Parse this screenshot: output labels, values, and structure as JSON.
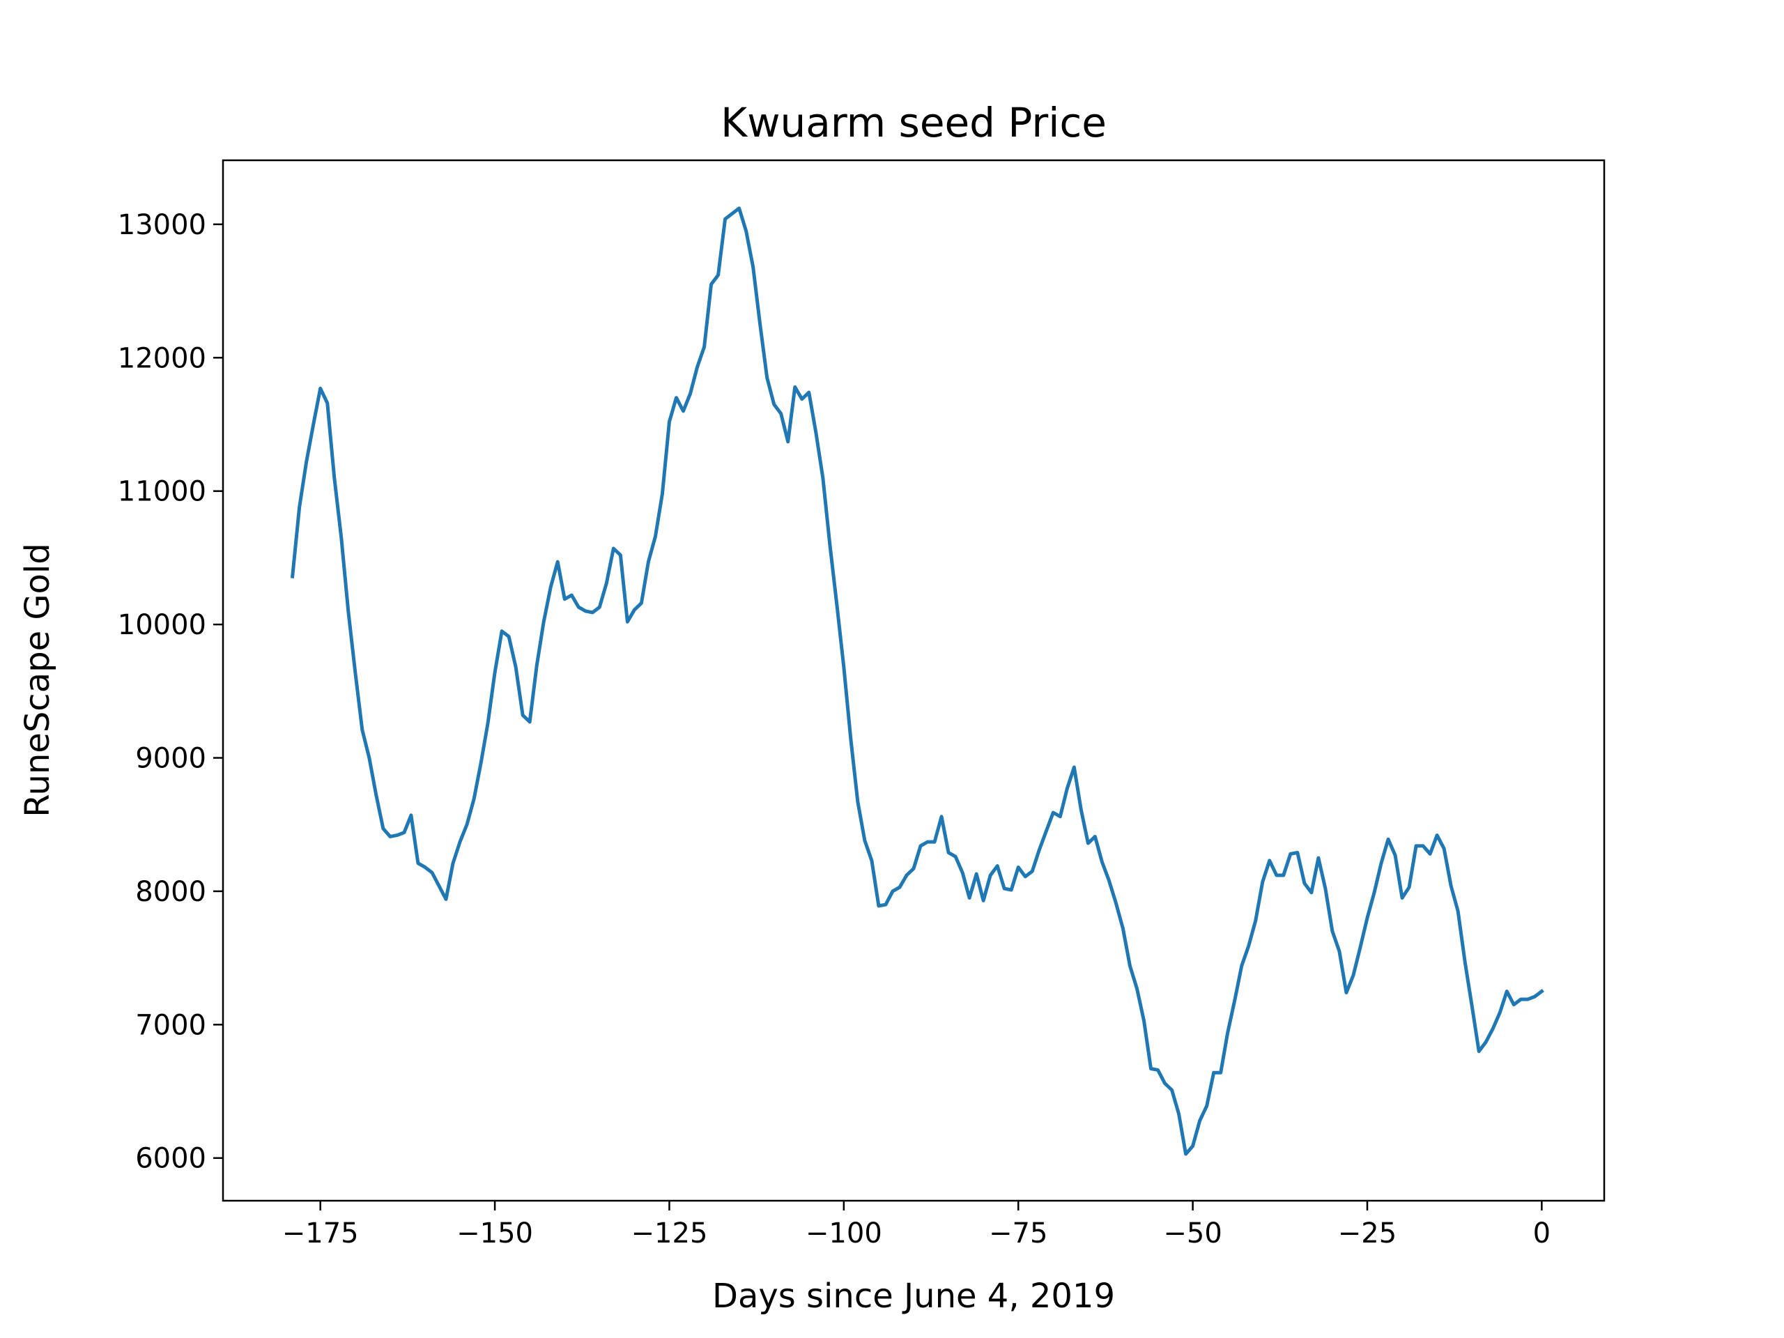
{
  "chart_data": {
    "type": "line",
    "title": "Kwuarm seed Price",
    "xlabel": "Days since June 4, 2019",
    "ylabel": "RuneScape Gold",
    "xlim": [
      -188.95,
      8.95
    ],
    "ylim": [
      5680,
      13480
    ],
    "xticks": [
      -175,
      -150,
      -125,
      -100,
      -75,
      -50,
      -25,
      0
    ],
    "xtick_labels": [
      "−175",
      "−150",
      "−125",
      "−100",
      "−75",
      "−50",
      "−25",
      "0"
    ],
    "yticks": [
      6000,
      7000,
      8000,
      9000,
      10000,
      11000,
      12000,
      13000
    ],
    "ytick_labels": [
      "6000",
      "7000",
      "8000",
      "9000",
      "10000",
      "11000",
      "12000",
      "13000"
    ],
    "grid": false,
    "legend": "none",
    "series": [
      {
        "color": "#1f77b4",
        "x": [
          -179,
          -178,
          -177,
          -176,
          -175,
          -174,
          -173,
          -172,
          -171,
          -170,
          -169,
          -168,
          -167,
          -166,
          -165,
          -164,
          -163,
          -162,
          -161,
          -160,
          -159,
          -158,
          -157,
          -156,
          -155,
          -154,
          -153,
          -152,
          -151,
          -150,
          -149,
          -148,
          -147,
          -146,
          -145,
          -144,
          -143,
          -142,
          -141,
          -140,
          -139,
          -138,
          -137,
          -136,
          -135,
          -134,
          -133,
          -132,
          -131,
          -130,
          -129,
          -128,
          -127,
          -126,
          -125,
          -124,
          -123,
          -122,
          -121,
          -120,
          -119,
          -118,
          -117,
          -116,
          -115,
          -114,
          -113,
          -112,
          -111,
          -110,
          -109,
          -108,
          -107,
          -106,
          -105,
          -104,
          -103,
          -102,
          -101,
          -100,
          -99,
          -98,
          -97,
          -96,
          -95,
          -94,
          -93,
          -92,
          -91,
          -90,
          -89,
          -88,
          -87,
          -86,
          -85,
          -84,
          -83,
          -82,
          -81,
          -80,
          -79,
          -78,
          -77,
          -76,
          -75,
          -74,
          -73,
          -72,
          -71,
          -70,
          -69,
          -68,
          -67,
          -66,
          -65,
          -64,
          -63,
          -62,
          -61,
          -60,
          -59,
          -58,
          -57,
          -56,
          -55,
          -54,
          -53,
          -52,
          -51,
          -50,
          -49,
          -48,
          -47,
          -46,
          -45,
          -44,
          -43,
          -42,
          -41,
          -40,
          -39,
          -38,
          -37,
          -36,
          -35,
          -34,
          -33,
          -32,
          -31,
          -30,
          -29,
          -28,
          -27,
          -26,
          -25,
          -24,
          -23,
          -22,
          -21,
          -20,
          -19,
          -18,
          -17,
          -16,
          -15,
          -14,
          -13,
          -12,
          -11,
          -10,
          -9,
          -8,
          -7,
          -6,
          -5,
          -4,
          -3,
          -2,
          -1,
          0
        ],
        "values": [
          10360,
          10880,
          11220,
          11500,
          11770,
          11660,
          11100,
          10650,
          10100,
          9640,
          9210,
          9000,
          8720,
          8470,
          8410,
          8420,
          8440,
          8570,
          8210,
          8180,
          8140,
          8040,
          7940,
          8210,
          8370,
          8500,
          8690,
          8960,
          9260,
          9640,
          9950,
          9910,
          9680,
          9320,
          9270,
          9690,
          10020,
          10280,
          10470,
          10190,
          10220,
          10130,
          10100,
          10090,
          10130,
          10310,
          10570,
          10520,
          10020,
          10110,
          10160,
          10470,
          10660,
          10980,
          11520,
          11700,
          11600,
          11730,
          11930,
          12080,
          12550,
          12620,
          13040,
          13080,
          13120,
          12950,
          12680,
          12250,
          11850,
          11650,
          11580,
          11370,
          11780,
          11690,
          11740,
          11440,
          11100,
          10600,
          10150,
          9680,
          9140,
          8670,
          8380,
          8230,
          7890,
          7900,
          8000,
          8030,
          8120,
          8170,
          8340,
          8370,
          8370,
          8560,
          8290,
          8260,
          8140,
          7950,
          8130,
          7930,
          8120,
          8190,
          8020,
          8010,
          8180,
          8110,
          8150,
          8310,
          8450,
          8590,
          8560,
          8770,
          8930,
          8610,
          8360,
          8410,
          8220,
          8080,
          7910,
          7720,
          7440,
          7270,
          7030,
          6670,
          6660,
          6560,
          6510,
          6330,
          6030,
          6090,
          6280,
          6390,
          6640,
          6640,
          6940,
          7180,
          7440,
          7590,
          7780,
          8070,
          8230,
          8120,
          8120,
          8280,
          8290,
          8060,
          7990,
          8250,
          8020,
          7700,
          7550,
          7240,
          7370,
          7580,
          7800,
          7990,
          8210,
          8390,
          8270,
          7950,
          8030,
          8340,
          8340,
          8280,
          8420,
          8320,
          8040,
          7850,
          7470,
          7140,
          6800,
          6870,
          6970,
          7090,
          7250,
          7150,
          7190,
          7190,
          7210,
          7250
        ]
      }
    ]
  }
}
